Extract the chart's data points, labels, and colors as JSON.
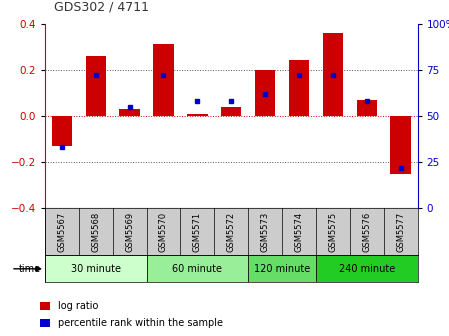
{
  "title": "GDS302 / 4711",
  "samples": [
    "GSM5567",
    "GSM5568",
    "GSM5569",
    "GSM5570",
    "GSM5571",
    "GSM5572",
    "GSM5573",
    "GSM5574",
    "GSM5575",
    "GSM5576",
    "GSM5577"
  ],
  "log_ratio": [
    -0.13,
    0.26,
    0.03,
    0.31,
    0.01,
    0.04,
    0.2,
    0.24,
    0.36,
    0.07,
    -0.25
  ],
  "percentile": [
    33,
    72,
    55,
    72,
    58,
    58,
    62,
    72,
    72,
    58,
    22
  ],
  "bar_color": "#cc0000",
  "dot_color": "#0000cc",
  "ylim_left": [
    -0.4,
    0.4
  ],
  "ylim_right": [
    0,
    100
  ],
  "yticks_left": [
    -0.4,
    -0.2,
    0.0,
    0.2,
    0.4
  ],
  "yticks_right": [
    0,
    25,
    50,
    75,
    100
  ],
  "ytick_labels_right": [
    "0",
    "25",
    "50",
    "75",
    "100%"
  ],
  "dotted_lines_black": [
    -0.2,
    0.2
  ],
  "zero_line_color": "#cc0000",
  "groups": [
    {
      "label": "30 minute",
      "start": 0,
      "end": 3,
      "color": "#ccffcc"
    },
    {
      "label": "60 minute",
      "start": 3,
      "end": 6,
      "color": "#99ee99"
    },
    {
      "label": "120 minute",
      "start": 6,
      "end": 8,
      "color": "#66dd66"
    },
    {
      "label": "240 minute",
      "start": 8,
      "end": 11,
      "color": "#22cc22"
    }
  ],
  "time_label": "time",
  "legend_log_ratio": "log ratio",
  "legend_percentile": "percentile rank within the sample",
  "bg_color": "#ffffff",
  "plot_bg_color": "#ffffff",
  "tick_label_area_color": "#cccccc"
}
